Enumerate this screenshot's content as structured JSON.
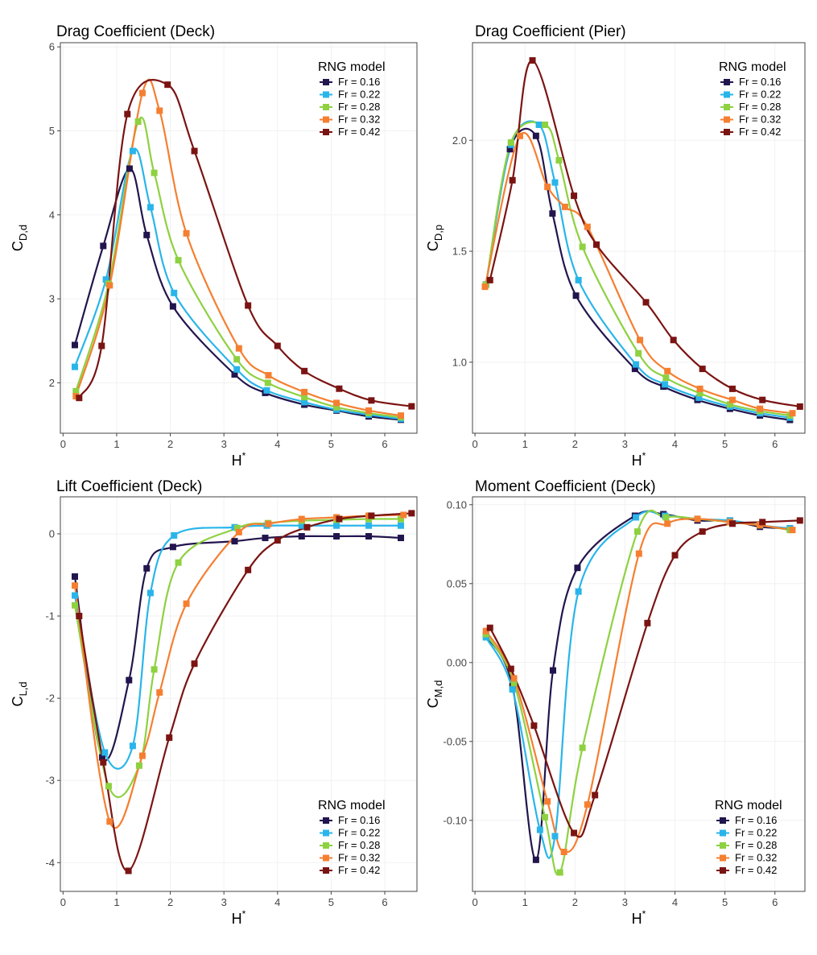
{
  "figure": {
    "series_colors": [
      "#22154d",
      "#29b5ea",
      "#8ed141",
      "#f57f31",
      "#7a1412"
    ]
  },
  "chart_data": [
    {
      "type": "line",
      "title": "Drag Coefficient (Deck)",
      "xlabel": "H",
      "xlabel_sup": "*",
      "ylabel": "C",
      "ylabel_sub": "D,d",
      "xlim": [
        -0.05,
        6.6
      ],
      "ylim": [
        1.4,
        6.05
      ],
      "xticks": [
        0,
        1,
        2,
        3,
        4,
        5,
        6
      ],
      "yticks": [
        2,
        3,
        4,
        5,
        6
      ],
      "legend": {
        "title": "RNG model",
        "position": "top-right"
      },
      "series": [
        {
          "name": "Fr = 0.16",
          "x": [
            0.22,
            0.75,
            1.24,
            1.56,
            2.05,
            3.2,
            3.77,
            4.5,
            5.1,
            5.7,
            6.3
          ],
          "y": [
            2.45,
            3.63,
            4.55,
            3.76,
            2.91,
            2.1,
            1.88,
            1.74,
            1.67,
            1.6,
            1.56
          ]
        },
        {
          "name": "Fr = 0.22",
          "x": [
            0.22,
            0.8,
            1.3,
            1.63,
            2.07,
            3.24,
            3.8,
            4.5,
            5.1,
            5.7,
            6.3
          ],
          "y": [
            2.19,
            3.23,
            4.76,
            4.09,
            3.07,
            2.16,
            1.91,
            1.77,
            1.68,
            1.62,
            1.57
          ]
        },
        {
          "name": "Fr = 0.28",
          "x": [
            0.24,
            0.85,
            1.4,
            1.7,
            2.15,
            3.24,
            3.82,
            4.5,
            5.1,
            5.7,
            6.3
          ],
          "y": [
            1.9,
            3.18,
            5.11,
            4.5,
            3.46,
            2.28,
            2.0,
            1.83,
            1.71,
            1.64,
            1.59
          ]
        },
        {
          "name": "Fr = 0.32",
          "x": [
            0.24,
            0.87,
            1.48,
            1.8,
            2.3,
            3.28,
            3.83,
            4.5,
            5.1,
            5.7,
            6.3
          ],
          "y": [
            1.84,
            3.16,
            5.45,
            5.24,
            3.78,
            2.41,
            2.09,
            1.89,
            1.76,
            1.67,
            1.61
          ]
        },
        {
          "name": "Fr = 0.42",
          "x": [
            0.3,
            0.72,
            1.2,
            1.95,
            2.45,
            3.45,
            4.0,
            4.5,
            5.15,
            5.75,
            6.5
          ],
          "y": [
            1.82,
            2.44,
            5.2,
            5.55,
            4.76,
            2.92,
            2.44,
            2.14,
            1.93,
            1.79,
            1.72
          ]
        }
      ]
    },
    {
      "type": "line",
      "title": "Drag Coefficient (Pier)",
      "xlabel": "H",
      "xlabel_sup": "*",
      "ylabel": "C",
      "ylabel_sub": "D,p",
      "xlim": [
        -0.05,
        6.6
      ],
      "ylim": [
        0.68,
        2.44
      ],
      "xticks": [
        0,
        1,
        2,
        3,
        4,
        5,
        6
      ],
      "yticks": [
        1.0,
        1.5,
        2.0
      ],
      "ytick_labels": [
        "1.0",
        "1.5",
        "2.0"
      ],
      "legend": {
        "title": "RNG model",
        "position": "top-right"
      },
      "series": [
        {
          "name": "Fr = 0.16",
          "x": [
            0.22,
            0.7,
            1.22,
            1.55,
            2.02,
            3.2,
            3.77,
            4.45,
            5.1,
            5.7,
            6.3
          ],
          "y": [
            1.35,
            1.96,
            2.02,
            1.67,
            1.3,
            0.97,
            0.89,
            0.83,
            0.79,
            0.76,
            0.74
          ]
        },
        {
          "name": "Fr = 0.22",
          "x": [
            0.22,
            0.72,
            1.28,
            1.6,
            2.07,
            3.22,
            3.8,
            4.48,
            5.1,
            5.7,
            6.3
          ],
          "y": [
            1.35,
            1.98,
            2.07,
            1.81,
            1.37,
            0.99,
            0.9,
            0.84,
            0.8,
            0.77,
            0.75
          ]
        },
        {
          "name": "Fr = 0.28",
          "x": [
            0.22,
            0.72,
            1.4,
            1.68,
            2.15,
            3.27,
            3.82,
            4.5,
            5.1,
            5.7,
            6.3
          ],
          "y": [
            1.35,
            1.99,
            2.07,
            1.91,
            1.52,
            1.04,
            0.93,
            0.86,
            0.81,
            0.78,
            0.76
          ]
        },
        {
          "name": "Fr = 0.32",
          "x": [
            0.2,
            0.9,
            1.45,
            1.8,
            2.25,
            3.3,
            3.85,
            4.5,
            5.15,
            5.7,
            6.35
          ],
          "y": [
            1.34,
            2.02,
            1.79,
            1.7,
            1.61,
            1.1,
            0.96,
            0.88,
            0.83,
            0.79,
            0.77
          ]
        },
        {
          "name": "Fr = 0.42",
          "x": [
            0.3,
            0.75,
            1.15,
            1.98,
            2.43,
            3.42,
            3.97,
            4.55,
            5.15,
            5.75,
            6.5
          ],
          "y": [
            1.37,
            1.82,
            2.36,
            1.75,
            1.53,
            1.27,
            1.1,
            0.97,
            0.88,
            0.83,
            0.8
          ]
        }
      ]
    },
    {
      "type": "line",
      "title": "Lift Coefficient (Deck)",
      "xlabel": "H",
      "xlabel_sup": "*",
      "ylabel": "C",
      "ylabel_sub": "L,d",
      "xlim": [
        -0.05,
        6.6
      ],
      "ylim": [
        -4.35,
        0.45
      ],
      "xticks": [
        0,
        1,
        2,
        3,
        4,
        5,
        6
      ],
      "yticks": [
        -4,
        -3,
        -2,
        -1,
        0
      ],
      "legend": {
        "title": "RNG model",
        "position": "bottom-right"
      },
      "series": [
        {
          "name": "Fr = 0.16",
          "x": [
            0.22,
            0.73,
            1.23,
            1.56,
            2.05,
            3.2,
            3.77,
            4.45,
            5.1,
            5.7,
            6.3
          ],
          "y": [
            -0.52,
            -2.72,
            -1.78,
            -0.42,
            -0.16,
            -0.09,
            -0.05,
            -0.03,
            -0.03,
            -0.03,
            -0.05
          ]
        },
        {
          "name": "Fr = 0.22",
          "x": [
            0.22,
            0.78,
            1.3,
            1.63,
            2.07,
            3.2,
            3.8,
            4.45,
            5.1,
            5.7,
            6.3
          ],
          "y": [
            -0.75,
            -2.66,
            -2.58,
            -0.72,
            -0.02,
            0.08,
            0.1,
            0.1,
            0.1,
            0.1,
            0.1
          ]
        },
        {
          "name": "Fr = 0.28",
          "x": [
            0.22,
            0.85,
            1.42,
            1.7,
            2.15,
            3.25,
            3.82,
            4.45,
            5.1,
            5.7,
            6.3
          ],
          "y": [
            -0.87,
            -3.07,
            -2.82,
            -1.65,
            -0.35,
            0.07,
            0.13,
            0.16,
            0.17,
            0.18,
            0.18
          ]
        },
        {
          "name": "Fr = 0.32",
          "x": [
            0.22,
            0.87,
            1.48,
            1.8,
            2.3,
            3.28,
            3.83,
            4.45,
            5.1,
            5.7,
            6.35
          ],
          "y": [
            -0.63,
            -3.5,
            -2.7,
            -1.93,
            -0.85,
            0.02,
            0.12,
            0.18,
            0.2,
            0.22,
            0.23
          ]
        },
        {
          "name": "Fr = 0.42",
          "x": [
            0.3,
            0.75,
            1.22,
            1.98,
            2.45,
            3.45,
            4.0,
            4.55,
            5.15,
            5.75,
            6.5
          ],
          "y": [
            -1.0,
            -2.78,
            -4.1,
            -2.48,
            -1.58,
            -0.44,
            -0.08,
            0.08,
            0.18,
            0.22,
            0.25
          ]
        }
      ]
    },
    {
      "type": "line",
      "title": "Moment Coefficient (Deck)",
      "xlabel": "H",
      "xlabel_sup": "*",
      "ylabel": "C",
      "ylabel_sub": "M,d",
      "xlim": [
        -0.05,
        6.6
      ],
      "ylim": [
        -0.145,
        0.105
      ],
      "xticks": [
        0,
        1,
        2,
        3,
        4,
        5,
        6
      ],
      "yticks": [
        -0.1,
        -0.05,
        0.0,
        0.05,
        0.1
      ],
      "ytick_labels": [
        "-0.10",
        "-0.05",
        "0.00",
        "0.05",
        "0.10"
      ],
      "legend": {
        "title": "RNG model",
        "position": "bottom-right"
      },
      "series": [
        {
          "name": "Fr = 0.16",
          "x": [
            0.22,
            0.75,
            1.22,
            1.56,
            2.05,
            3.2,
            3.77,
            4.45,
            5.1,
            5.7,
            6.3
          ],
          "y": [
            0.017,
            -0.015,
            -0.125,
            -0.005,
            0.06,
            0.093,
            0.094,
            0.09,
            0.09,
            0.086,
            0.085
          ]
        },
        {
          "name": "Fr = 0.22",
          "x": [
            0.22,
            0.75,
            1.3,
            1.6,
            2.07,
            3.22,
            3.8,
            4.45,
            5.1,
            5.7,
            6.3
          ],
          "y": [
            0.016,
            -0.017,
            -0.106,
            -0.11,
            0.045,
            0.092,
            0.093,
            0.091,
            0.09,
            0.087,
            0.085
          ]
        },
        {
          "name": "Fr = 0.28",
          "x": [
            0.22,
            0.78,
            1.4,
            1.7,
            2.15,
            3.25,
            3.82,
            4.45,
            5.1,
            5.7,
            6.3
          ],
          "y": [
            0.018,
            -0.013,
            -0.098,
            -0.133,
            -0.054,
            0.083,
            0.092,
            0.091,
            0.089,
            0.087,
            0.084
          ]
        },
        {
          "name": "Fr = 0.32",
          "x": [
            0.22,
            0.78,
            1.45,
            1.78,
            2.25,
            3.28,
            3.85,
            4.45,
            5.1,
            5.7,
            6.35
          ],
          "y": [
            0.02,
            -0.01,
            -0.088,
            -0.12,
            -0.09,
            0.069,
            0.088,
            0.091,
            0.089,
            0.087,
            0.084
          ]
        },
        {
          "name": "Fr = 0.42",
          "x": [
            0.3,
            0.72,
            1.18,
            1.98,
            2.4,
            3.45,
            4.0,
            4.55,
            5.15,
            5.75,
            6.5
          ],
          "y": [
            0.022,
            -0.004,
            -0.04,
            -0.108,
            -0.084,
            0.025,
            0.068,
            0.083,
            0.088,
            0.089,
            0.09
          ]
        }
      ]
    }
  ]
}
